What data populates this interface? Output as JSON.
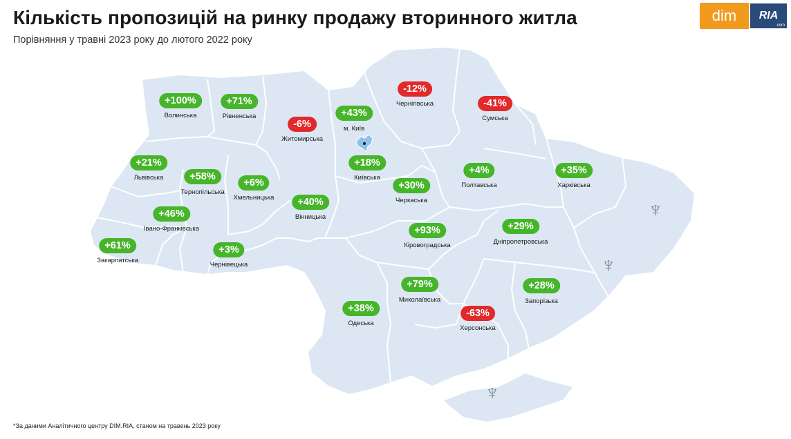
{
  "header": {
    "title": "Кількість пропозицій на ринку продажу вторинного житла",
    "subtitle": "Порівняння у травні 2023 року до лютого 2022 року"
  },
  "logo": {
    "dim": "dim",
    "ria": "RIA",
    "ria_suffix": ".com",
    "dim_color": "#f19a1d",
    "ria_color": "#2a4a7a"
  },
  "colors": {
    "positive": "#46b52a",
    "negative": "#e2292b",
    "land": "#dce7f3",
    "border": "#ffffff"
  },
  "regions": [
    {
      "name": "Волинська",
      "value": "+100%",
      "sign": "pos"
    },
    {
      "name": "Рівненська",
      "value": "+71%",
      "sign": "pos"
    },
    {
      "name": "Житомирська",
      "value": "-6%",
      "sign": "neg"
    },
    {
      "name": "м. Київ",
      "value": "+43%",
      "sign": "pos"
    },
    {
      "name": "Чернігівська",
      "value": "-12%",
      "sign": "neg"
    },
    {
      "name": "Сумська",
      "value": "-41%",
      "sign": "neg"
    },
    {
      "name": "Львівська",
      "value": "+21%",
      "sign": "pos"
    },
    {
      "name": "Тернопільська",
      "value": "+58%",
      "sign": "pos"
    },
    {
      "name": "Хмельницька",
      "value": "+6%",
      "sign": "pos"
    },
    {
      "name": "Київська",
      "value": "+18%",
      "sign": "pos"
    },
    {
      "name": "Черкаська",
      "value": "+30%",
      "sign": "pos"
    },
    {
      "name": "Полтавська",
      "value": "+4%",
      "sign": "pos"
    },
    {
      "name": "Харківська",
      "value": "+35%",
      "sign": "pos"
    },
    {
      "name": "Івано-Франківська",
      "value": "+46%",
      "sign": "pos"
    },
    {
      "name": "Вінницька",
      "value": "+40%",
      "sign": "pos"
    },
    {
      "name": "Кіровоградська",
      "value": "+93%",
      "sign": "pos"
    },
    {
      "name": "Дніпропетровська",
      "value": "+29%",
      "sign": "pos"
    },
    {
      "name": "Закарпатська",
      "value": "+61%",
      "sign": "pos"
    },
    {
      "name": "Чернівецька",
      "value": "+3%",
      "sign": "pos"
    },
    {
      "name": "Миколаївська",
      "value": "+79%",
      "sign": "pos"
    },
    {
      "name": "Запорізька",
      "value": "+28%",
      "sign": "pos"
    },
    {
      "name": "Одеська",
      "value": "+38%",
      "sign": "pos"
    },
    {
      "name": "Херсонська",
      "value": "-63%",
      "sign": "neg"
    }
  ],
  "footnote": "*За даними Аналітичного центру DIM.RIA, станом на травень 2023 року"
}
